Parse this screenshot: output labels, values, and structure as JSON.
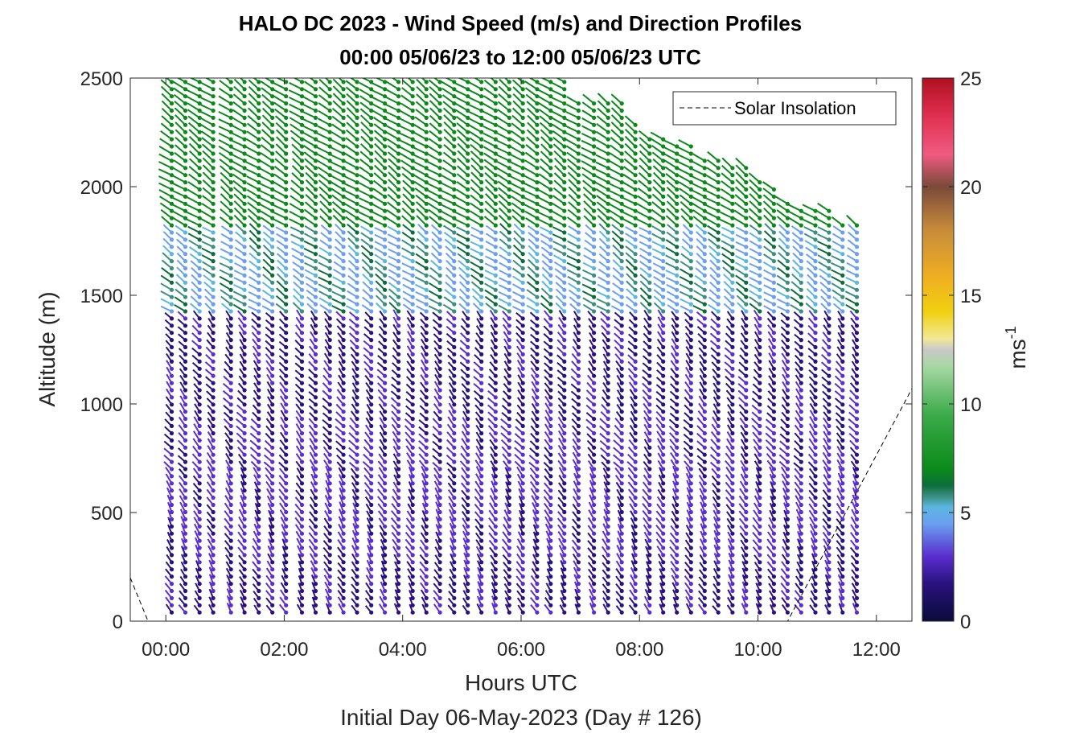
{
  "chart_data": {
    "type": "barb-profile",
    "title": "HALO DC 2023 - Wind Speed (m/s) and Direction Profiles",
    "subtitle": "00:00 05/06/23 to 12:00 05/06/23  UTC",
    "xlabel": "Hours UTC",
    "xlabel2": "Initial Day 06-May-2023 (Day # 126)",
    "ylabel": "Altitude (m)",
    "x_ticks": [
      "00:00",
      "02:00",
      "04:00",
      "06:00",
      "08:00",
      "10:00",
      "12:00"
    ],
    "y_ticks": [
      "0",
      "500",
      "1000",
      "1500",
      "2000",
      "2500"
    ],
    "ylim": [
      0,
      2500
    ],
    "xlim_hours": [
      -0.6,
      12.6
    ],
    "colorbar": {
      "label": "ms",
      "label_exp": "-1",
      "range": [
        0,
        25
      ],
      "ticks": [
        "0",
        "5",
        "10",
        "15",
        "20",
        "25"
      ]
    },
    "legend": {
      "label": "Solar Insolation",
      "placement": "top-right"
    },
    "profile_times_hours": [
      0.1,
      0.33,
      0.57,
      0.8,
      1.1,
      1.33,
      1.57,
      1.8,
      2.03,
      2.3,
      2.53,
      2.77,
      3.0,
      3.23,
      3.47,
      3.7,
      3.93,
      4.17,
      4.4,
      4.63,
      4.87,
      5.1,
      5.33,
      5.57,
      5.8,
      6.03,
      6.27,
      6.5,
      6.73,
      6.97,
      7.23,
      7.47,
      7.7,
      7.93,
      8.17,
      8.4,
      8.63,
      8.87,
      9.1,
      9.33,
      9.57,
      9.8,
      10.03,
      10.27,
      10.5,
      10.73,
      10.97,
      11.2,
      11.43,
      11.67
    ],
    "profile_tops_m": [
      2500,
      2500,
      2500,
      2500,
      2500,
      2500,
      2500,
      2500,
      2500,
      2500,
      2500,
      2500,
      2500,
      2500,
      2500,
      2500,
      2500,
      2500,
      2500,
      2500,
      2500,
      2500,
      2500,
      2500,
      2500,
      2500,
      2500,
      2500,
      2500,
      2400,
      2400,
      2400,
      2400,
      2300,
      2250,
      2250,
      2200,
      2200,
      2150,
      2150,
      2100,
      2100,
      2050,
      2000,
      1950,
      1900,
      1900,
      1900,
      1850,
      1850
    ],
    "level_spacing_m": 33,
    "speed_layers": [
      {
        "from_m": 0,
        "to_m": 300,
        "speed_ms": 2.5
      },
      {
        "from_m": 300,
        "to_m": 900,
        "speed_ms": 3.5
      },
      {
        "from_m": 900,
        "to_m": 1400,
        "speed_ms": 2.5
      },
      {
        "from_m": 1400,
        "to_m": 1800,
        "speed_ms": 5.5
      },
      {
        "from_m": 1800,
        "to_m": 2500,
        "speed_ms": 8
      }
    ],
    "solar_insolation": {
      "x_hours": [
        -0.6,
        -0.3,
        10.5,
        12.6
      ],
      "y_m": [
        200,
        0,
        0,
        1070
      ]
    }
  }
}
